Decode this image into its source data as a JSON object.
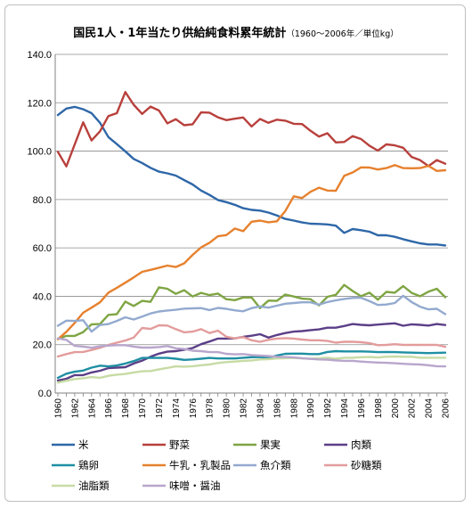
{
  "chart_data": {
    "type": "line",
    "title": "国民1人・1年当たり供給純食料累年統計",
    "subtitle": "（1960～2006年／単位kg）",
    "xlabel": "",
    "ylabel": "",
    "ylim": [
      0,
      140
    ],
    "yticks": [
      "0.0",
      "20.0",
      "40.0",
      "60.0",
      "80.0",
      "100.0",
      "120.0",
      "140.0"
    ],
    "grid": true,
    "legend_position": "bottom",
    "x": [
      1960,
      1961,
      1962,
      1963,
      1964,
      1965,
      1966,
      1967,
      1968,
      1969,
      1970,
      1971,
      1972,
      1973,
      1974,
      1975,
      1976,
      1977,
      1978,
      1979,
      1980,
      1981,
      1982,
      1983,
      1984,
      1985,
      1986,
      1987,
      1988,
      1989,
      1990,
      1991,
      1992,
      1993,
      1994,
      1995,
      1996,
      1997,
      1998,
      1999,
      2000,
      2001,
      2002,
      2003,
      2004,
      2005,
      2006
    ],
    "xtick_labels": [
      "1960",
      "1962",
      "1964",
      "1966",
      "1968",
      "1970",
      "1972",
      "1974",
      "1976",
      "1978",
      "1980",
      "1982",
      "1984",
      "1986",
      "1988",
      "1990",
      "1992",
      "1994",
      "1996",
      "1998",
      "2000",
      "2002",
      "2004",
      "2006"
    ],
    "series": [
      {
        "name": "米",
        "color": "#2E67A8",
        "values": [
          114.9,
          117.6,
          118.3,
          117.3,
          115.7,
          111.7,
          105.8,
          102.9,
          99.9,
          96.8,
          95.1,
          93.1,
          91.5,
          90.8,
          89.9,
          88.0,
          86.2,
          83.7,
          81.9,
          79.8,
          78.9,
          77.8,
          76.4,
          75.7,
          75.4,
          74.6,
          73.4,
          72.0,
          71.3,
          70.5,
          70.0,
          69.9,
          69.7,
          69.2,
          66.2,
          67.8,
          67.3,
          66.7,
          65.2,
          65.2,
          64.6,
          63.6,
          62.7,
          61.9,
          61.4,
          61.4,
          61.0
        ]
      },
      {
        "name": "野菜",
        "color": "#B8403C",
        "values": [
          99.7,
          93.7,
          102.8,
          111.9,
          104.4,
          108.2,
          114.5,
          115.7,
          124.4,
          119.2,
          115.4,
          118.4,
          116.8,
          111.5,
          113.2,
          110.7,
          111.1,
          116.0,
          115.9,
          114.0,
          112.8,
          113.4,
          113.9,
          110.2,
          113.3,
          111.7,
          113.0,
          112.6,
          111.3,
          111.2,
          108.4,
          106.0,
          107.4,
          103.6,
          103.8,
          106.2,
          105.0,
          102.2,
          100.2,
          102.8,
          102.4,
          101.4,
          97.6,
          96.3,
          93.8,
          96.3,
          94.8
        ]
      },
      {
        "name": "果実",
        "color": "#7FA543",
        "values": [
          22.4,
          23.6,
          23.6,
          25.2,
          28.4,
          28.5,
          32.3,
          32.6,
          37.8,
          36.0,
          38.1,
          37.7,
          43.7,
          43.1,
          41.0,
          42.5,
          39.9,
          41.4,
          40.5,
          41.1,
          38.8,
          38.4,
          39.5,
          39.5,
          35.1,
          38.2,
          38.1,
          40.7,
          39.9,
          39.0,
          38.8,
          36.2,
          39.8,
          40.6,
          44.7,
          42.2,
          40.0,
          41.5,
          38.6,
          41.8,
          41.5,
          44.2,
          41.4,
          40.0,
          41.9,
          43.1,
          39.6
        ]
      },
      {
        "name": "肉類",
        "color": "#5B3F87",
        "values": [
          5.2,
          5.9,
          7.4,
          7.4,
          8.5,
          9.2,
          10.3,
          10.5,
          10.7,
          12.2,
          13.4,
          15.0,
          16.3,
          17.1,
          17.3,
          17.9,
          18.6,
          20.2,
          21.3,
          22.5,
          22.5,
          22.6,
          23.2,
          23.7,
          24.3,
          22.9,
          24.0,
          24.8,
          25.4,
          25.6,
          26.0,
          26.3,
          27.0,
          27.0,
          27.7,
          28.5,
          28.2,
          28.0,
          28.3,
          28.6,
          28.8,
          27.8,
          28.4,
          28.2,
          27.9,
          28.5,
          28.1
        ]
      },
      {
        "name": "鶏卵",
        "color": "#1F8FA3",
        "values": [
          6.3,
          8.0,
          8.8,
          9.3,
          10.5,
          11.3,
          11.0,
          11.4,
          12.2,
          13.2,
          14.5,
          14.5,
          14.5,
          14.5,
          14.2,
          13.7,
          13.9,
          14.2,
          14.5,
          14.3,
          14.3,
          14.3,
          14.6,
          14.8,
          14.9,
          14.5,
          15.5,
          16.2,
          16.3,
          16.3,
          16.1,
          16.1,
          17.0,
          17.3,
          17.2,
          17.2,
          17.2,
          17.1,
          16.9,
          17.0,
          16.9,
          16.8,
          16.7,
          16.6,
          16.5,
          16.6,
          16.7
        ]
      },
      {
        "name": "牛乳・乳製品",
        "color": "#E6812E",
        "values": [
          22.2,
          25.3,
          29.0,
          33.2,
          35.3,
          37.5,
          41.5,
          43.5,
          45.6,
          47.8,
          50.1,
          50.9,
          51.8,
          52.7,
          52.1,
          53.6,
          57.1,
          60.2,
          62.1,
          64.8,
          65.3,
          68.0,
          66.9,
          70.8,
          71.3,
          70.6,
          71.0,
          75.2,
          81.3,
          80.6,
          83.2,
          84.9,
          83.7,
          83.6,
          89.8,
          91.2,
          93.3,
          93.2,
          92.4,
          93.0,
          94.2,
          93.0,
          92.9,
          93.0,
          93.9,
          91.8,
          92.1
        ]
      },
      {
        "name": "魚介類",
        "color": "#93AACF",
        "values": [
          27.8,
          29.9,
          29.8,
          30.1,
          25.4,
          28.1,
          28.5,
          29.8,
          31.3,
          30.4,
          31.6,
          32.9,
          33.7,
          34.1,
          34.4,
          34.9,
          35.0,
          35.1,
          34.3,
          35.2,
          34.8,
          34.2,
          33.8,
          35.1,
          35.8,
          35.3,
          36.1,
          36.9,
          37.2,
          37.5,
          37.5,
          36.5,
          37.6,
          38.3,
          38.9,
          39.3,
          39.4,
          38.0,
          36.4,
          36.6,
          37.2,
          40.2,
          37.6,
          35.7,
          34.6,
          34.8,
          32.6
        ]
      },
      {
        "name": "砂糖類",
        "color": "#E39C9C",
        "values": [
          15.1,
          16.1,
          16.9,
          17.0,
          17.8,
          18.7,
          19.9,
          20.8,
          21.7,
          22.9,
          26.9,
          26.5,
          28.0,
          27.9,
          26.4,
          25.1,
          25.4,
          26.4,
          24.8,
          25.8,
          23.3,
          22.6,
          23.1,
          21.8,
          21.2,
          22.0,
          22.5,
          22.7,
          22.5,
          22.1,
          21.8,
          21.8,
          21.5,
          20.8,
          21.2,
          21.2,
          21.0,
          20.6,
          19.8,
          19.9,
          20.2,
          19.9,
          19.9,
          19.9,
          19.9,
          19.9,
          19.1
        ]
      },
      {
        "name": "油脂類",
        "color": "#C7DBA4",
        "values": [
          4.3,
          5.1,
          5.8,
          6.1,
          6.6,
          6.3,
          7.1,
          7.6,
          7.9,
          8.5,
          9.0,
          9.1,
          9.8,
          10.4,
          11.0,
          10.9,
          11.1,
          11.5,
          11.8,
          12.4,
          12.8,
          13.0,
          13.3,
          13.5,
          13.9,
          14.0,
          14.3,
          14.4,
          14.5,
          14.3,
          14.2,
          14.4,
          14.6,
          14.2,
          14.6,
          14.6,
          14.8,
          14.9,
          14.7,
          15.0,
          15.1,
          15.0,
          15.0,
          14.6,
          14.6,
          14.6,
          14.6
        ]
      },
      {
        "name": "味噌・醤油",
        "color": "#B8A6CC",
        "values": [
          22.6,
          22.0,
          19.5,
          19.2,
          18.7,
          19.3,
          19.6,
          19.8,
          19.8,
          19.2,
          18.8,
          18.8,
          19.0,
          19.4,
          18.5,
          18.2,
          17.5,
          17.3,
          16.9,
          16.9,
          16.2,
          16.0,
          16.1,
          15.7,
          15.5,
          15.3,
          15.0,
          14.9,
          14.7,
          14.4,
          14.1,
          13.9,
          13.8,
          13.5,
          13.3,
          13.3,
          13.0,
          12.8,
          12.6,
          12.5,
          12.3,
          12.1,
          11.9,
          11.8,
          11.5,
          11.1,
          11.0
        ]
      }
    ]
  }
}
